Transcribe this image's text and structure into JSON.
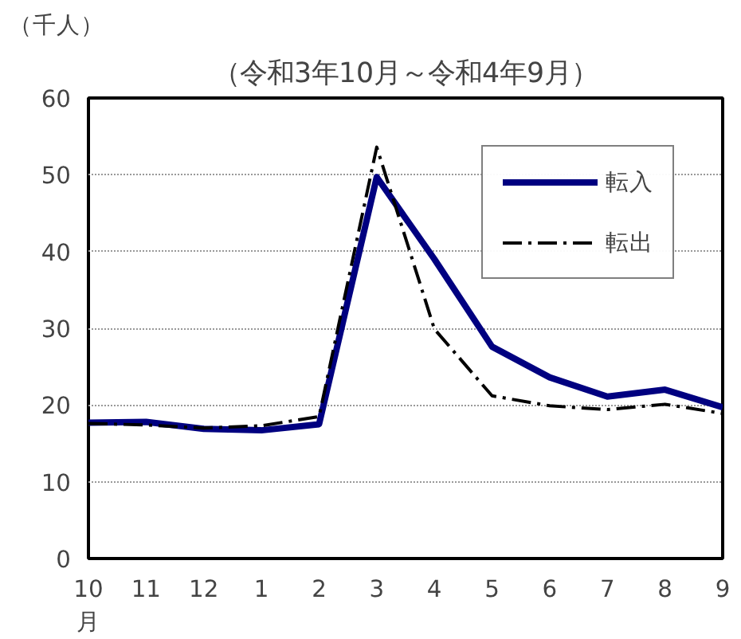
{
  "chart_data": {
    "type": "line",
    "title": "（令和3年10月～令和4年9月）",
    "ylabel": "（千人）",
    "categories": [
      "10\n月",
      "11",
      "12",
      "1",
      "2",
      "3",
      "4",
      "5",
      "6",
      "7",
      "8",
      "9"
    ],
    "series": [
      {
        "name": "転入",
        "color": "#000080",
        "line_style": "solid",
        "values": [
          17.7,
          17.8,
          16.9,
          16.7,
          17.5,
          49.7,
          39,
          27.6,
          23.6,
          21.1,
          22.0,
          19.7
        ]
      },
      {
        "name": "転出",
        "color": "#000000",
        "line_style": "dashdot",
        "values": [
          17.6,
          17.4,
          17.0,
          17.3,
          18.5,
          53.6,
          29.9,
          21.2,
          19.9,
          19.4,
          20.1,
          18.9
        ]
      }
    ],
    "ylim": [
      0,
      60
    ],
    "yticks": [
      0,
      10,
      20,
      30,
      40,
      50,
      60
    ],
    "grid": "y",
    "legend": "top right",
    "marker": "none"
  }
}
